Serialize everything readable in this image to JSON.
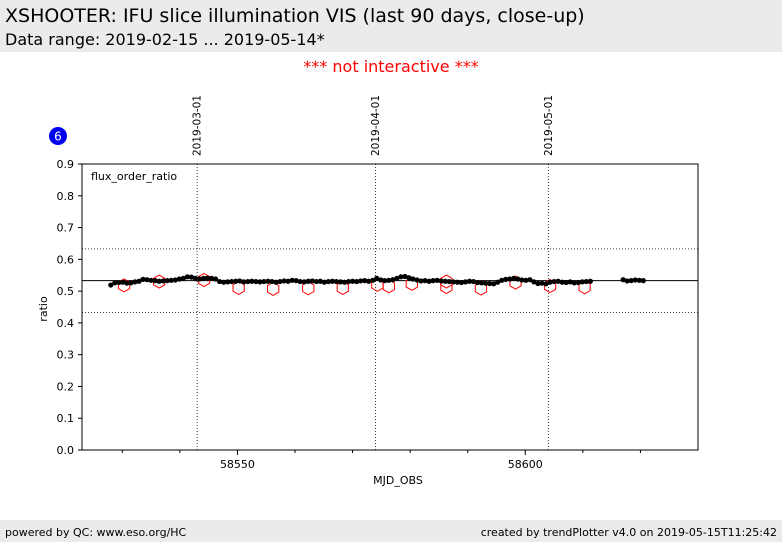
{
  "header": {
    "title": "XSHOOTER: IFU slice illumination VIS (last 90 days, close-up)",
    "subtitle": "Data range: 2019-02-15 ... 2019-05-14*"
  },
  "notice": "*** not interactive ***",
  "badge": "6",
  "footer": {
    "left": "powered by QC: www.eso.org/HC",
    "right": "created by trendPlotter v4.0 on 2019-05-15T11:25:42"
  },
  "colors": {
    "data_points": "#000000",
    "outliers": "#ff0000",
    "badge": "#0000ee",
    "notice": "#ff0000",
    "header_bg": "#ebebeb"
  },
  "chart_data": {
    "type": "scatter",
    "xlabel": "MJD_OBS",
    "ylabel": "ratio",
    "annotation": "flux_order_ratio",
    "xlim": [
      58523,
      58630
    ],
    "ylim": [
      0.0,
      0.9
    ],
    "yticks": [
      0.0,
      0.1,
      0.2,
      0.3,
      0.4,
      0.5,
      0.6,
      0.7,
      0.8,
      0.9
    ],
    "xticks_major": [
      58550,
      58600
    ],
    "xticks_minor": [
      58530,
      58540,
      58560,
      58570,
      58580,
      58590,
      58610,
      58620
    ],
    "date_markers": [
      {
        "mjd": 58543.0,
        "label": "2019-03-01"
      },
      {
        "mjd": 58574.0,
        "label": "2019-04-01"
      },
      {
        "mjd": 58604.0,
        "label": "2019-05-01"
      }
    ],
    "reference_lines": {
      "mean": 0.533,
      "upper": 0.633,
      "lower": 0.433
    },
    "series": [
      {
        "points": [
          [
            58528.0,
            0.519
          ],
          [
            58528.7,
            0.526
          ],
          [
            58529.4,
            0.527
          ],
          [
            58530.1,
            0.528
          ],
          [
            58530.8,
            0.525
          ],
          [
            58531.5,
            0.526
          ],
          [
            58532.2,
            0.529
          ],
          [
            58532.9,
            0.531
          ],
          [
            58533.6,
            0.537
          ],
          [
            58534.3,
            0.536
          ],
          [
            58535.0,
            0.534
          ],
          [
            58535.7,
            0.533
          ],
          [
            58536.4,
            0.531
          ],
          [
            58537.1,
            0.532
          ],
          [
            58537.8,
            0.533
          ],
          [
            58538.5,
            0.534
          ],
          [
            58539.2,
            0.535
          ],
          [
            58539.9,
            0.538
          ],
          [
            58540.6,
            0.54
          ],
          [
            58541.3,
            0.545
          ],
          [
            58542.0,
            0.544
          ],
          [
            58542.7,
            0.54
          ],
          [
            58543.4,
            0.538
          ],
          [
            58544.1,
            0.54
          ],
          [
            58544.8,
            0.541
          ],
          [
            58545.5,
            0.54
          ],
          [
            58546.2,
            0.538
          ],
          [
            58546.9,
            0.53
          ],
          [
            58547.6,
            0.528
          ],
          [
            58548.3,
            0.529
          ],
          [
            58549.0,
            0.53
          ],
          [
            58549.7,
            0.531
          ],
          [
            58550.4,
            0.532
          ],
          [
            58551.1,
            0.529
          ],
          [
            58551.8,
            0.53
          ],
          [
            58552.5,
            0.531
          ],
          [
            58553.2,
            0.53
          ],
          [
            58553.9,
            0.529
          ],
          [
            58554.6,
            0.53
          ],
          [
            58555.3,
            0.531
          ],
          [
            58556.0,
            0.53
          ],
          [
            58556.7,
            0.528
          ],
          [
            58557.4,
            0.53
          ],
          [
            58558.1,
            0.532
          ],
          [
            58558.8,
            0.531
          ],
          [
            58559.5,
            0.534
          ],
          [
            58560.2,
            0.533
          ],
          [
            58560.9,
            0.53
          ],
          [
            58561.6,
            0.529
          ],
          [
            58562.3,
            0.531
          ],
          [
            58563.0,
            0.532
          ],
          [
            58563.7,
            0.53
          ],
          [
            58564.4,
            0.531
          ],
          [
            58565.1,
            0.528
          ],
          [
            58565.8,
            0.53
          ],
          [
            58566.5,
            0.531
          ],
          [
            58567.2,
            0.53
          ],
          [
            58567.9,
            0.529
          ],
          [
            58568.6,
            0.528
          ],
          [
            58569.3,
            0.53
          ],
          [
            58570.0,
            0.531
          ],
          [
            58570.7,
            0.53
          ],
          [
            58571.4,
            0.532
          ],
          [
            58572.1,
            0.533
          ],
          [
            58572.8,
            0.531
          ],
          [
            58573.5,
            0.534
          ],
          [
            58574.2,
            0.54
          ],
          [
            58574.9,
            0.535
          ],
          [
            58575.6,
            0.533
          ],
          [
            58576.3,
            0.534
          ],
          [
            58577.0,
            0.536
          ],
          [
            58577.7,
            0.54
          ],
          [
            58578.4,
            0.545
          ],
          [
            58579.1,
            0.546
          ],
          [
            58579.8,
            0.542
          ],
          [
            58580.5,
            0.538
          ],
          [
            58581.2,
            0.535
          ],
          [
            58581.9,
            0.532
          ],
          [
            58582.6,
            0.533
          ],
          [
            58583.3,
            0.531
          ],
          [
            58584.0,
            0.533
          ],
          [
            58584.7,
            0.534
          ],
          [
            58585.4,
            0.532
          ],
          [
            58586.1,
            0.531
          ],
          [
            58586.8,
            0.53
          ],
          [
            58587.5,
            0.529
          ],
          [
            58588.2,
            0.528
          ],
          [
            58588.9,
            0.527
          ],
          [
            58589.6,
            0.529
          ],
          [
            58590.3,
            0.531
          ],
          [
            58591.0,
            0.53
          ],
          [
            58591.7,
            0.527
          ],
          [
            58592.4,
            0.526
          ],
          [
            58593.1,
            0.525
          ],
          [
            58593.8,
            0.524
          ],
          [
            58594.5,
            0.523
          ],
          [
            58595.2,
            0.528
          ],
          [
            58595.9,
            0.534
          ],
          [
            58596.6,
            0.537
          ],
          [
            58597.3,
            0.538
          ],
          [
            58598.0,
            0.54
          ],
          [
            58598.7,
            0.538
          ],
          [
            58599.4,
            0.535
          ],
          [
            58600.1,
            0.534
          ],
          [
            58600.8,
            0.536
          ],
          [
            58601.5,
            0.529
          ],
          [
            58602.2,
            0.524
          ],
          [
            58602.9,
            0.525
          ],
          [
            58603.6,
            0.523
          ],
          [
            58604.3,
            0.528
          ],
          [
            58605.0,
            0.53
          ],
          [
            58605.7,
            0.531
          ],
          [
            58606.4,
            0.528
          ],
          [
            58607.1,
            0.527
          ],
          [
            58607.8,
            0.529
          ],
          [
            58608.5,
            0.526
          ],
          [
            58609.2,
            0.527
          ],
          [
            58609.9,
            0.529
          ],
          [
            58610.6,
            0.53
          ],
          [
            58611.3,
            0.531
          ],
          [
            58617.0,
            0.536
          ],
          [
            58617.7,
            0.532
          ],
          [
            58618.4,
            0.533
          ],
          [
            58619.1,
            0.535
          ],
          [
            58619.8,
            0.534
          ],
          [
            58620.5,
            0.533
          ]
        ]
      },
      {
        "style": "red-hexagon",
        "points": [
          [
            58530.3,
            0.518
          ],
          [
            58536.4,
            0.53
          ],
          [
            58544.2,
            0.535
          ],
          [
            58550.2,
            0.51
          ],
          [
            58556.2,
            0.507
          ],
          [
            58562.3,
            0.509
          ],
          [
            58568.3,
            0.51
          ],
          [
            58574.3,
            0.52
          ],
          [
            58576.3,
            0.515
          ],
          [
            58580.3,
            0.523
          ],
          [
            58586.3,
            0.53
          ],
          [
            58586.3,
            0.513
          ],
          [
            58592.3,
            0.508
          ],
          [
            58598.3,
            0.527
          ],
          [
            58604.3,
            0.516
          ],
          [
            58610.3,
            0.512
          ]
        ]
      }
    ]
  }
}
